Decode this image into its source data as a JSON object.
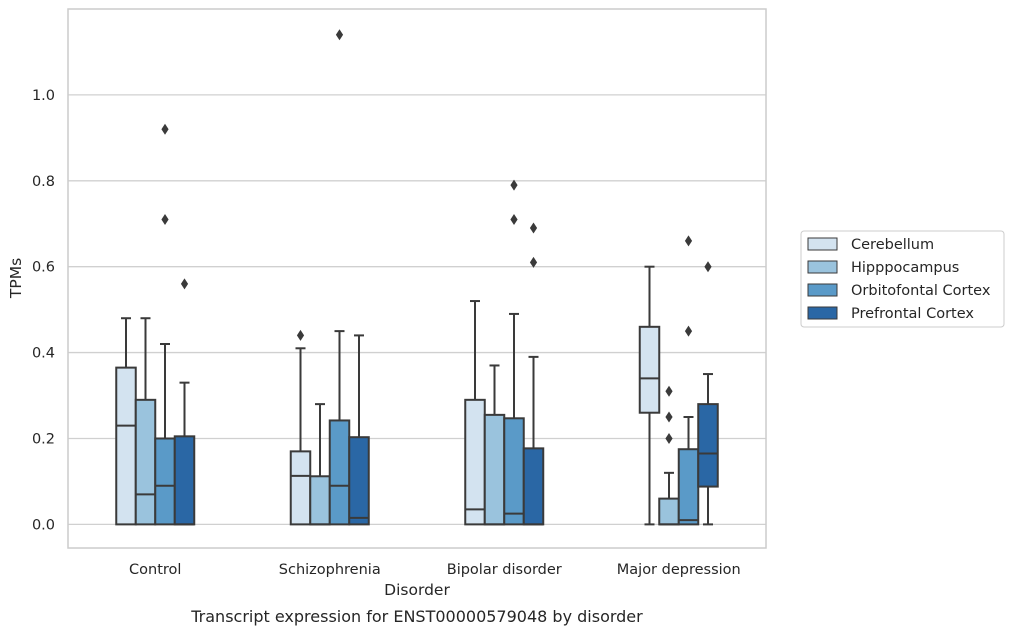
{
  "chart_data": {
    "type": "boxplot",
    "caption": "Transcript expression for ENST00000579048 by disorder",
    "xlabel": "Disorder",
    "ylabel": "TPMs",
    "ylim": [
      -0.055,
      1.2
    ],
    "yticks": [
      0.0,
      0.2,
      0.4,
      0.6,
      0.8,
      1.0
    ],
    "ytick_labels": [
      "0.0",
      "0.2",
      "0.4",
      "0.6",
      "0.8",
      "1.0"
    ],
    "grid": "horizontal",
    "legend_position": "right",
    "categories": [
      "Control",
      "Schizophrenia",
      "Bipolar disorder",
      "Major depression"
    ],
    "series": [
      {
        "name": "Cerebellum",
        "color": "#d3e3f0",
        "boxes": [
          {
            "whisker_low": 0.0,
            "q1": 0.0,
            "median": 0.23,
            "q3": 0.365,
            "whisker_high": 0.48,
            "outliers": []
          },
          {
            "whisker_low": 0.0,
            "q1": 0.0,
            "median": 0.113,
            "q3": 0.17,
            "whisker_high": 0.41,
            "outliers": [
              0.44
            ]
          },
          {
            "whisker_low": 0.0,
            "q1": 0.0,
            "median": 0.035,
            "q3": 0.29,
            "whisker_high": 0.52,
            "outliers": []
          },
          {
            "whisker_low": 0.0,
            "q1": 0.26,
            "median": 0.34,
            "q3": 0.46,
            "whisker_high": 0.6,
            "outliers": []
          }
        ]
      },
      {
        "name": "Hipppocampus",
        "color": "#9ac3dd",
        "boxes": [
          {
            "whisker_low": 0.0,
            "q1": 0.0,
            "median": 0.07,
            "q3": 0.29,
            "whisker_high": 0.48,
            "outliers": []
          },
          {
            "whisker_low": 0.0,
            "q1": 0.0,
            "median": 0.0,
            "q3": 0.112,
            "whisker_high": 0.28,
            "outliers": []
          },
          {
            "whisker_low": 0.0,
            "q1": 0.0,
            "median": 0.0,
            "q3": 0.255,
            "whisker_high": 0.37,
            "outliers": []
          },
          {
            "whisker_low": 0.0,
            "q1": 0.0,
            "median": 0.0,
            "q3": 0.06,
            "whisker_high": 0.12,
            "outliers": [
              0.2,
              0.25,
              0.31
            ]
          }
        ]
      },
      {
        "name": "Orbitofontal Cortex",
        "color": "#5a9ac8",
        "boxes": [
          {
            "whisker_low": 0.0,
            "q1": 0.0,
            "median": 0.09,
            "q3": 0.2,
            "whisker_high": 0.42,
            "outliers": [
              0.71,
              0.92
            ]
          },
          {
            "whisker_low": 0.0,
            "q1": 0.0,
            "median": 0.09,
            "q3": 0.242,
            "whisker_high": 0.45,
            "outliers": [
              1.14
            ]
          },
          {
            "whisker_low": 0.0,
            "q1": 0.0,
            "median": 0.025,
            "q3": 0.247,
            "whisker_high": 0.49,
            "outliers": [
              0.71,
              0.79
            ]
          },
          {
            "whisker_low": 0.0,
            "q1": 0.0,
            "median": 0.01,
            "q3": 0.175,
            "whisker_high": 0.25,
            "outliers": [
              0.45,
              0.66
            ]
          }
        ]
      },
      {
        "name": "Prefrontal Cortex",
        "color": "#2a67a5",
        "boxes": [
          {
            "whisker_low": 0.0,
            "q1": 0.0,
            "median": 0.0,
            "q3": 0.205,
            "whisker_high": 0.33,
            "outliers": [
              0.56
            ]
          },
          {
            "whisker_low": 0.0,
            "q1": 0.0,
            "median": 0.015,
            "q3": 0.203,
            "whisker_high": 0.44,
            "outliers": []
          },
          {
            "whisker_low": 0.0,
            "q1": 0.0,
            "median": 0.0,
            "q3": 0.177,
            "whisker_high": 0.39,
            "outliers": [
              0.61,
              0.69
            ]
          },
          {
            "whisker_low": 0.0,
            "q1": 0.088,
            "median": 0.165,
            "q3": 0.28,
            "whisker_high": 0.35,
            "outliers": [
              0.6
            ]
          }
        ]
      }
    ]
  }
}
